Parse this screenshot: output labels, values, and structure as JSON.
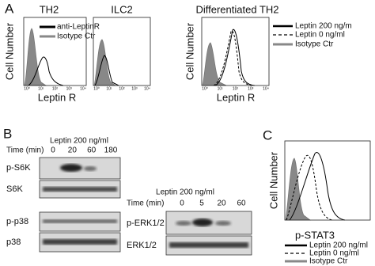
{
  "panel_a": {
    "label": "A",
    "y_label": "Cell Number",
    "x_label": "Leptin R",
    "x_ticks": [
      "10⁰",
      "10¹",
      "10²",
      "10³",
      "10⁴"
    ],
    "plots": [
      {
        "title": "TH2"
      },
      {
        "title": "ILC2"
      },
      {
        "title": "Differentiated TH2"
      }
    ],
    "legend_left": [
      "anti-LeptinR",
      "Isotype Ctr"
    ],
    "legend_right": [
      "Leptin 200 ng/m",
      "Leptin 0 ng/ml",
      "Isotype Ctr"
    ]
  },
  "panel_b": {
    "label": "B",
    "blot_1": {
      "treatment": "Leptin 200 ng/ml",
      "time_label": "Time (min)",
      "times": [
        0,
        20,
        60,
        180
      ],
      "rows": [
        "p-S6K",
        "S6K",
        "p-p38",
        "p38"
      ]
    },
    "blot_2": {
      "treatment": "Leptin 200 ng/ml",
      "time_label": "Time (min)",
      "times": [
        0,
        5,
        20,
        60
      ],
      "rows": [
        "p-ERK1/2",
        "ERK1/2"
      ]
    }
  },
  "panel_c": {
    "label": "C",
    "y_label": "Cell Number",
    "x_label": "p-STAT3",
    "legend": [
      "Leptin 200 ng/ml",
      "Leptin 0 ng/ml",
      "Isotype Ctr"
    ]
  }
}
